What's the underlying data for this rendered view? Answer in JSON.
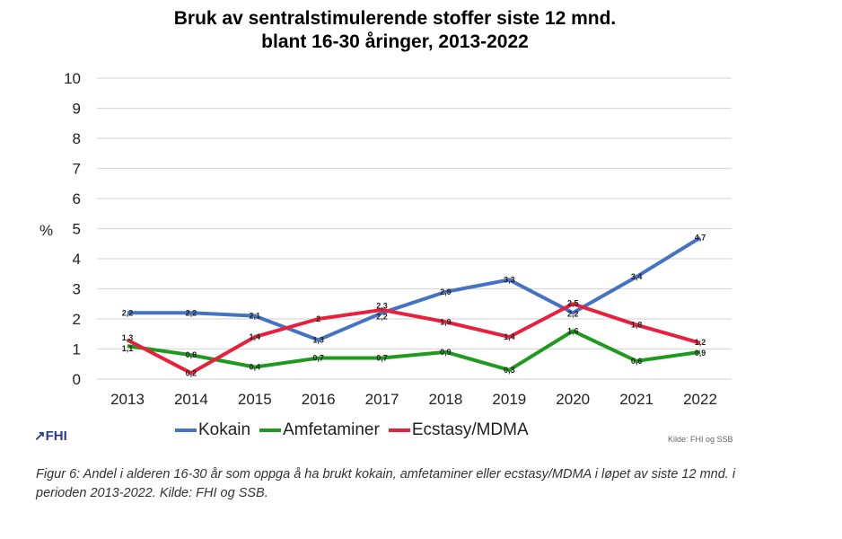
{
  "chart_data": {
    "type": "line",
    "title": "Bruk av sentralstimulerende stoffer siste 12 mnd. blant 16-30 åringer, 2013-2022",
    "title_lines": [
      "Bruk av sentralstimulerende stoffer siste 12 mnd.",
      "blant 16-30 åringer, 2013-2022"
    ],
    "ylabel": "%",
    "xlabel": "",
    "ylim": [
      0,
      10
    ],
    "yticks": [
      "0",
      "1",
      "2",
      "3",
      "4",
      "5",
      "6",
      "7",
      "8",
      "9",
      "10"
    ],
    "categories": [
      "2013",
      "2014",
      "2015",
      "2016",
      "2017",
      "2018",
      "2019",
      "2020",
      "2021",
      "2022"
    ],
    "grid": true,
    "legend": "bottom",
    "series": [
      {
        "name": "Kokain",
        "color": "#4472c4",
        "values": [
          2.2,
          2.2,
          2.1,
          1.3,
          2.2,
          2.9,
          3.3,
          2.2,
          3.4,
          4.7
        ]
      },
      {
        "name": "Amfetaminer",
        "color": "#1e9a1e",
        "values": [
          1.1,
          0.8,
          0.4,
          0.7,
          0.7,
          0.9,
          0.3,
          1.6,
          0.6,
          0.9
        ]
      },
      {
        "name": "Ecstasy/MDMA",
        "color": "#e8203c",
        "values": [
          1.3,
          0.2,
          1.4,
          2,
          2.3,
          1.9,
          1.4,
          2.5,
          1.8,
          1.2
        ]
      }
    ]
  },
  "logo": "FHI",
  "source": "Kilde: FHI og SSB",
  "caption": "Figur 6: Andel i alderen 16-30 år som oppga å ha brukt kokain, amfetaminer eller ecstasy/MDMA i løpet av siste 12 mnd. i perioden 2013-2022. Kilde: FHI og SSB."
}
